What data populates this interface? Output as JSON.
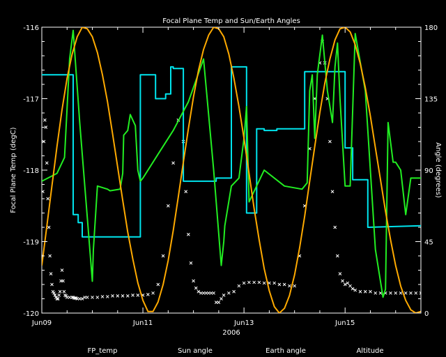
{
  "chart_data": {
    "type": "line",
    "title": "Focal Plane Temp and Sun/Earth Angles",
    "xlabel": "2006",
    "ylabel_left": "Focal Plane Temp (degC)",
    "ylabel_right": "Angle (degrees)",
    "x_ticks": [
      "Jun09",
      "Jun11",
      "Jun13",
      "Jun15"
    ],
    "x_tick_days": [
      9,
      11,
      13,
      15
    ],
    "xlim": [
      9,
      16.5
    ],
    "y_left_ticks": [
      "-116",
      "-117",
      "-118",
      "-119",
      "-120"
    ],
    "y_left_tick_values": [
      -116,
      -117,
      -118,
      -119,
      -120
    ],
    "ylim_left": [
      -120,
      -116
    ],
    "y_right_ticks": [
      "180",
      "135",
      "90",
      "45",
      "0"
    ],
    "y_right_tick_values": [
      180,
      135,
      90,
      45,
      0
    ],
    "ylim_right": [
      0,
      180
    ],
    "legend_placement": "bottom",
    "colors": {
      "background": "#000000",
      "axes": "#ffffff",
      "fp_temp": "#ffffff",
      "sun_angle": "#00e5ee",
      "earth_angle": "#22ee22",
      "altitude": "#ffaa00"
    },
    "series": [
      {
        "name": "FP_temp",
        "axis": "left",
        "marker": "x",
        "x": [
          9.0,
          9.02,
          9.04,
          9.06,
          9.08,
          9.1,
          9.12,
          9.14,
          9.16,
          9.18,
          9.2,
          9.22,
          9.24,
          9.26,
          9.28,
          9.3,
          9.32,
          9.34,
          9.36,
          9.38,
          9.4,
          9.42,
          9.44,
          9.46,
          9.48,
          9.5,
          9.55,
          9.6,
          9.62,
          9.64,
          9.66,
          9.68,
          9.7,
          9.75,
          9.8,
          9.85,
          9.9,
          10.0,
          10.1,
          10.2,
          10.3,
          10.4,
          10.5,
          10.6,
          10.7,
          10.8,
          10.9,
          11.0,
          11.1,
          11.2,
          11.3,
          11.4,
          11.5,
          11.6,
          11.7,
          11.8,
          11.85,
          11.9,
          11.95,
          12.0,
          12.05,
          12.1,
          12.15,
          12.2,
          12.25,
          12.3,
          12.35,
          12.4,
          12.45,
          12.5,
          12.55,
          12.6,
          12.7,
          12.8,
          12.9,
          13.0,
          13.1,
          13.2,
          13.3,
          13.4,
          13.5,
          13.6,
          13.7,
          13.8,
          13.9,
          14.0,
          14.1,
          14.2,
          14.3,
          14.4,
          14.5,
          14.55,
          14.6,
          14.65,
          14.7,
          14.75,
          14.8,
          14.85,
          14.9,
          14.95,
          15.0,
          15.05,
          15.1,
          15.15,
          15.2,
          15.3,
          15.4,
          15.5,
          15.6,
          15.7,
          15.8,
          15.9,
          16.0,
          16.1,
          16.2,
          16.3,
          16.4,
          16.5
        ],
        "values": [
          -119.2,
          -118.3,
          -117.6,
          -117.3,
          -117.4,
          -117.9,
          -118.4,
          -118.8,
          -119.2,
          -119.45,
          -119.6,
          -119.7,
          -119.72,
          -119.75,
          -119.78,
          -119.8,
          -119.8,
          -119.75,
          -119.7,
          -119.55,
          -119.4,
          -119.55,
          -119.7,
          -119.75,
          -119.76,
          -119.78,
          -119.78,
          -119.78,
          -119.78,
          -119.79,
          -119.79,
          -119.79,
          -119.8,
          -119.8,
          -119.8,
          -119.78,
          -119.78,
          -119.78,
          -119.78,
          -119.77,
          -119.77,
          -119.76,
          -119.76,
          -119.76,
          -119.76,
          -119.75,
          -119.75,
          -119.75,
          -119.74,
          -119.72,
          -119.6,
          -119.2,
          -118.5,
          -117.9,
          -117.3,
          -117.6,
          -118.3,
          -118.9,
          -119.3,
          -119.55,
          -119.65,
          -119.7,
          -119.72,
          -119.72,
          -119.72,
          -119.72,
          -119.72,
          -119.72,
          -119.85,
          -119.85,
          -119.8,
          -119.75,
          -119.72,
          -119.7,
          -119.62,
          -119.58,
          -119.57,
          -119.57,
          -119.57,
          -119.58,
          -119.58,
          -119.58,
          -119.6,
          -119.6,
          -119.62,
          -119.62,
          -119.2,
          -118.5,
          -117.7,
          -117.0,
          -116.5,
          -116.2,
          -116.5,
          -117.0,
          -117.6,
          -118.3,
          -118.8,
          -119.2,
          -119.45,
          -119.55,
          -119.6,
          -119.58,
          -119.62,
          -119.66,
          -119.68,
          -119.7,
          -119.7,
          -119.7,
          -119.72,
          -119.72,
          -119.72,
          -119.72,
          -119.72,
          -119.72,
          -119.72,
          -119.72,
          -119.72,
          -119.72
        ]
      },
      {
        "name": "Sun angle",
        "axis": "right",
        "x": [
          9.0,
          9.6,
          9.62,
          9.62,
          9.72,
          9.72,
          9.8,
          9.8,
          10.95,
          10.95,
          11.25,
          11.25,
          11.45,
          11.45,
          11.55,
          11.55,
          11.6,
          11.6,
          11.8,
          11.8,
          12.45,
          12.45,
          12.75,
          12.75,
          13.05,
          13.05,
          13.25,
          13.25,
          13.4,
          13.4,
          13.65,
          13.65,
          14.2,
          14.2,
          14.45,
          14.45,
          15.0,
          15.0,
          15.15,
          15.15,
          15.45,
          15.45,
          16.5
        ],
        "values": [
          150,
          150,
          150,
          62,
          62,
          57,
          57,
          48,
          48,
          150,
          150,
          135,
          135,
          138,
          138,
          155,
          155,
          154,
          154,
          83,
          83,
          85,
          85,
          155,
          155,
          63,
          63,
          116,
          116,
          115,
          115,
          116,
          116,
          152,
          152,
          152,
          152,
          104,
          104,
          84,
          84,
          54,
          55
        ]
      },
      {
        "name": "Earth angle",
        "axis": "right",
        "x": [
          9.0,
          9.3,
          9.45,
          9.55,
          9.62,
          9.75,
          9.9,
          10.0,
          10.02,
          10.1,
          10.3,
          10.35,
          10.55,
          10.6,
          10.62,
          10.7,
          10.75,
          10.85,
          10.9,
          10.95,
          11.0,
          11.3,
          11.6,
          11.9,
          12.2,
          12.4,
          12.55,
          12.6,
          12.62,
          12.75,
          12.9,
          13.0,
          13.05,
          13.1,
          13.4,
          13.8,
          14.15,
          14.25,
          14.3,
          14.35,
          14.4,
          14.45,
          14.55,
          14.65,
          14.75,
          14.8,
          14.85,
          14.9,
          15.0,
          15.1,
          15.2,
          15.4,
          15.6,
          15.75,
          15.8,
          15.85,
          15.95,
          16.0,
          16.1,
          16.2,
          16.3,
          16.5
        ],
        "values": [
          83,
          88,
          98,
          160,
          178,
          120,
          60,
          20,
          40,
          80,
          78,
          77,
          78,
          88,
          112,
          115,
          125,
          118,
          90,
          83,
          85,
          100,
          115,
          133,
          160,
          90,
          30,
          45,
          55,
          80,
          85,
          110,
          130,
          70,
          90,
          80,
          78,
          82,
          140,
          150,
          110,
          150,
          175,
          140,
          120,
          155,
          170,
          135,
          80,
          80,
          176,
          140,
          40,
          10,
          15,
          120,
          95,
          95,
          90,
          62,
          85,
          85
        ]
      },
      {
        "name": "Altitude",
        "axis": "right",
        "x": [
          9.0,
          9.1,
          9.2,
          9.3,
          9.4,
          9.5,
          9.6,
          9.7,
          9.8,
          9.9,
          10.0,
          10.1,
          10.2,
          10.3,
          10.4,
          10.5,
          10.6,
          10.7,
          10.8,
          10.9,
          11.0,
          11.1,
          11.2,
          11.3,
          11.4,
          11.5,
          11.6,
          11.7,
          11.8,
          11.9,
          12.0,
          12.1,
          12.2,
          12.3,
          12.4,
          12.5,
          12.6,
          12.7,
          12.8,
          12.9,
          13.0,
          13.1,
          13.2,
          13.3,
          13.4,
          13.5,
          13.6,
          13.7,
          13.8,
          13.9,
          14.0,
          14.1,
          14.2,
          14.3,
          14.4,
          14.5,
          14.6,
          14.7,
          14.8,
          14.9,
          15.0,
          15.1,
          15.2,
          15.3,
          15.4,
          15.5,
          15.6,
          15.7,
          15.8,
          15.9,
          16.0,
          16.1,
          16.2,
          16.3,
          16.4,
          16.5
        ],
        "values": [
          30,
          55,
          80,
          105,
          128,
          148,
          163,
          174,
          180,
          179,
          174,
          164,
          150,
          133,
          113,
          92,
          71,
          51,
          34,
          19,
          8,
          1,
          1,
          7,
          18,
          33,
          52,
          73,
          95,
          116,
          136,
          153,
          166,
          175,
          180,
          179,
          174,
          163,
          148,
          130,
          110,
          88,
          66,
          46,
          28,
          14,
          4,
          0,
          3,
          11,
          24,
          41,
          61,
          83,
          105,
          126,
          145,
          160,
          172,
          179,
          180,
          177,
          169,
          157,
          142,
          124,
          104,
          84,
          64,
          46,
          30,
          17,
          8,
          2,
          0,
          1
        ]
      }
    ]
  }
}
